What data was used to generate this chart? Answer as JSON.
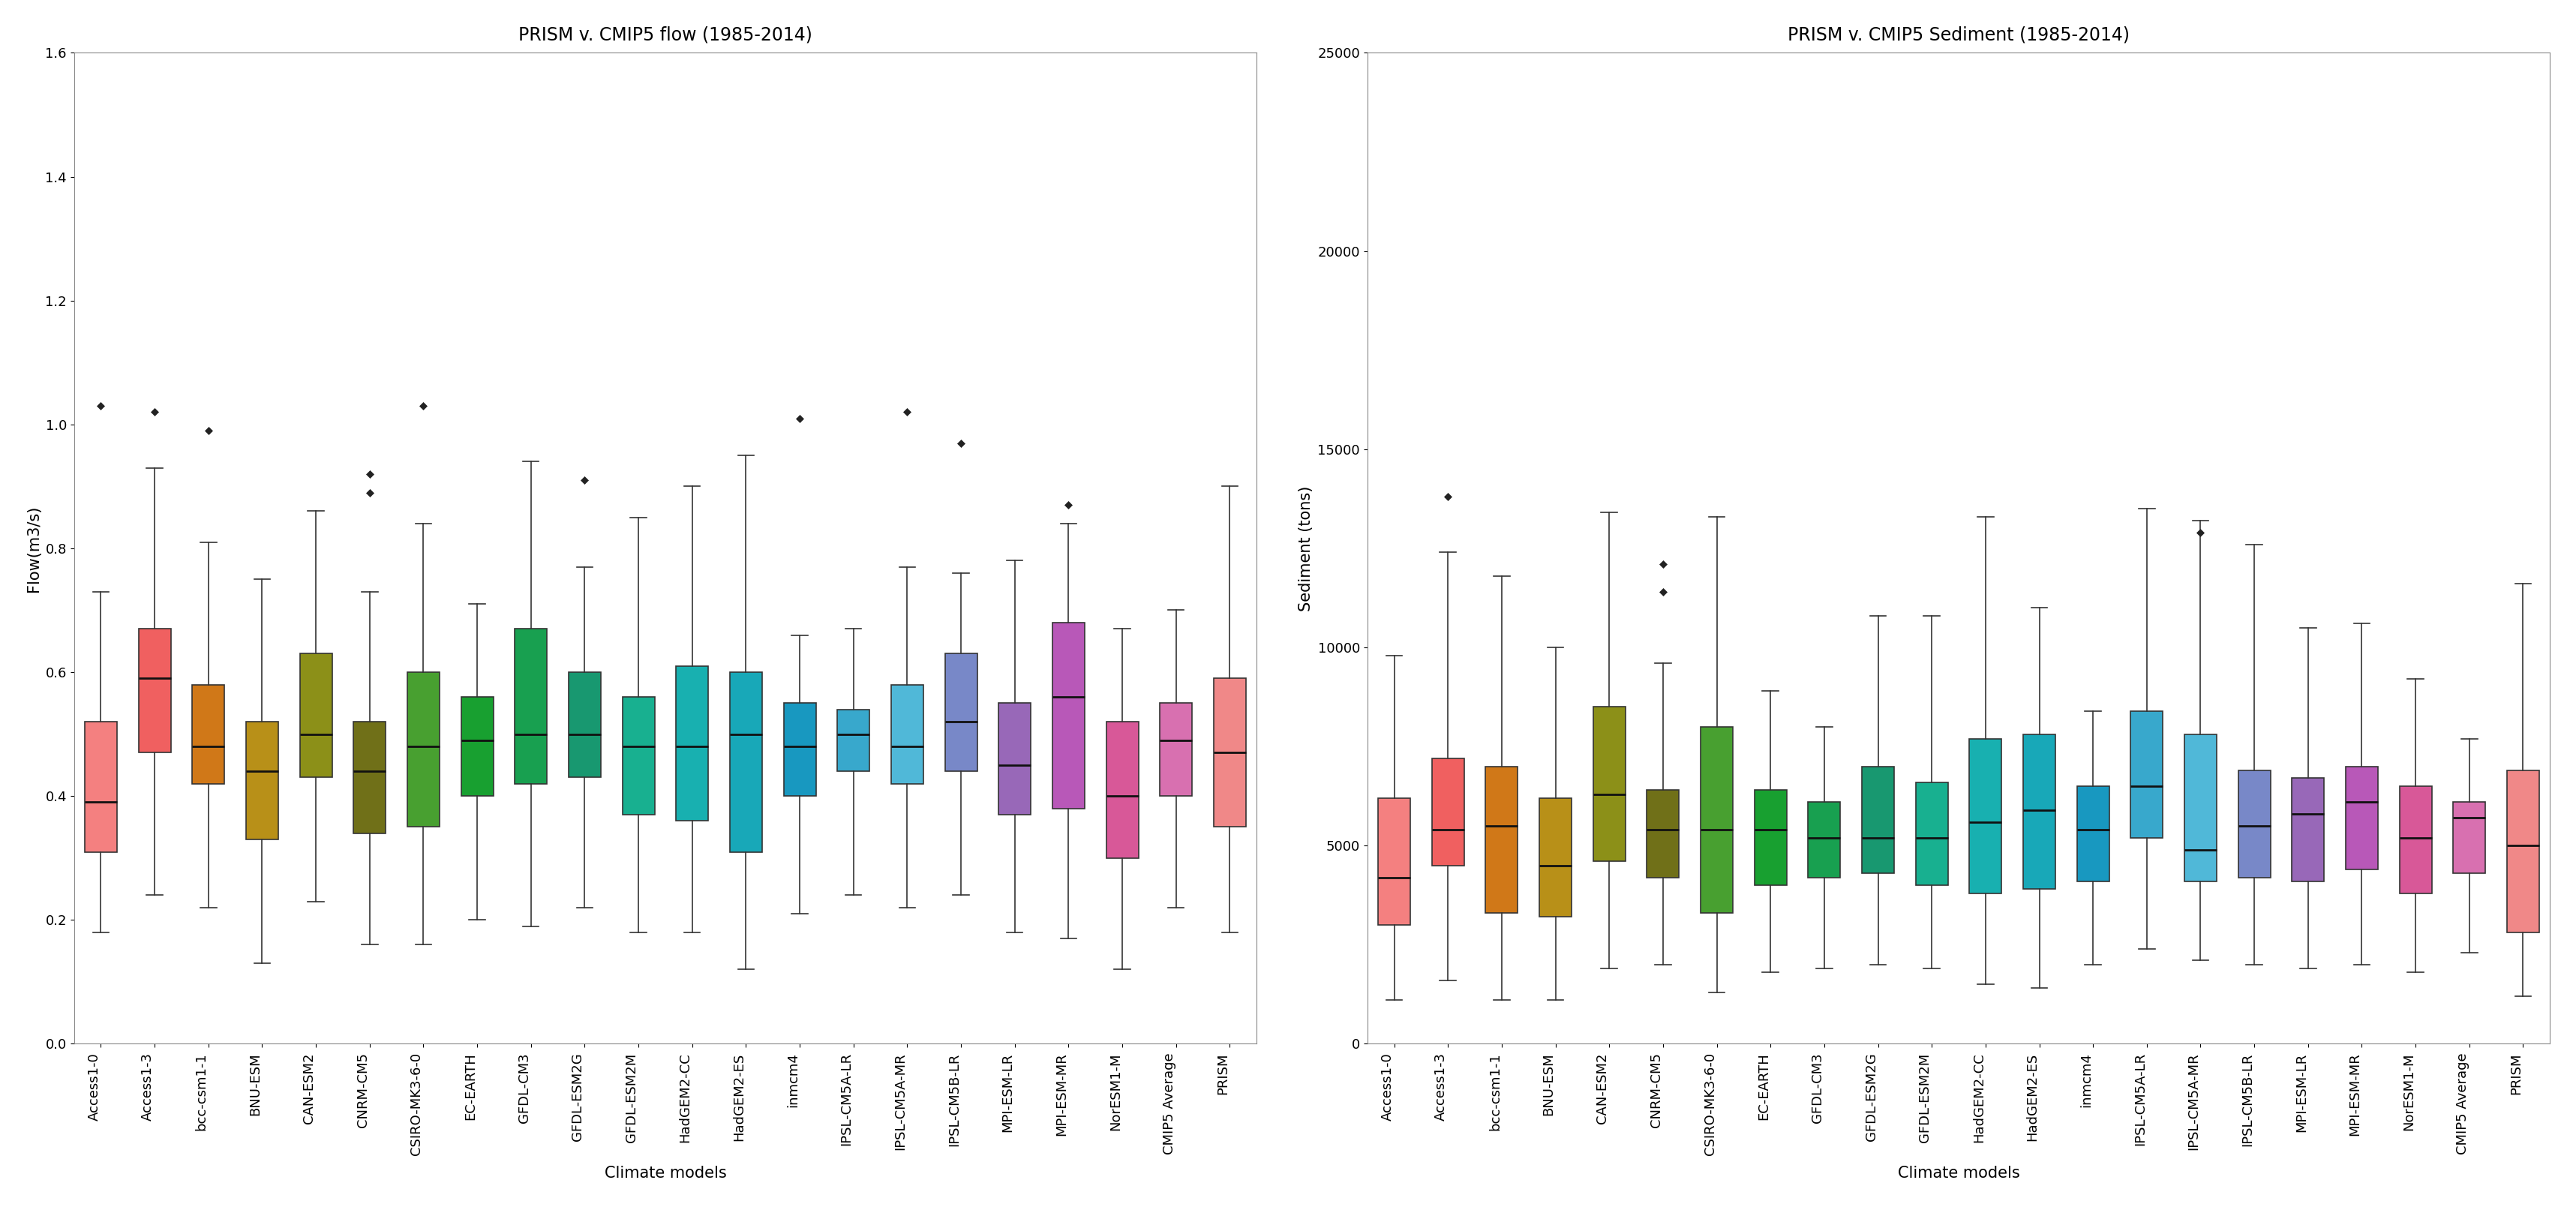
{
  "flow_title": "PRISM v. CMIP5 flow (1985-2014)",
  "sed_title": "PRISM v. CMIP5 Sediment (1985-2014)",
  "flow_ylabel": "Flow(m3/s)",
  "sed_ylabel": "Sediment (tons)",
  "xlabel": "Climate models",
  "flow_ylim": [
    0.0,
    1.6
  ],
  "sed_ylim": [
    0,
    25000
  ],
  "flow_yticks": [
    0.0,
    0.2,
    0.4,
    0.6,
    0.8,
    1.0,
    1.2,
    1.4,
    1.6
  ],
  "sed_yticks": [
    0,
    5000,
    10000,
    15000,
    20000,
    25000
  ],
  "labels": [
    "Access1-0",
    "Access1-3",
    "bcc-csm1-1",
    "BNU-ESM",
    "CAN-ESM2",
    "CNRM-CM5",
    "CSIRO-MK3-6-0",
    "EC-EARTH",
    "GFDL-CM3",
    "GFDL-ESM2G",
    "GFDL-ESM2M",
    "HadGEM2-CC",
    "HadGEM2-ES",
    "inmcm4",
    "IPSL-CM5A-LR",
    "IPSL-CM5A-MR",
    "IPSL-CM5B-LR",
    "MPI-ESM-LR",
    "MPI-ESM-MR",
    "NorESM1-M",
    "CMIP5 Average",
    "PRISM"
  ],
  "colors": [
    "#F48080",
    "#F06060",
    "#D07818",
    "#B89018",
    "#8C9018",
    "#707018",
    "#48A030",
    "#18A030",
    "#18A050",
    "#189870",
    "#18B090",
    "#18B0B0",
    "#18A8B8",
    "#1898C0",
    "#38A8CC",
    "#50B8D8",
    "#7888C8",
    "#9868B8",
    "#B858B8",
    "#D85898",
    "#D870B0",
    "#F08888"
  ],
  "flow_boxes": [
    {
      "med": 0.39,
      "q1": 0.31,
      "q3": 0.52,
      "whislo": 0.18,
      "whishi": 0.73,
      "fliers": [
        1.03
      ]
    },
    {
      "med": 0.59,
      "q1": 0.47,
      "q3": 0.67,
      "whislo": 0.24,
      "whishi": 0.93,
      "fliers": [
        1.02
      ]
    },
    {
      "med": 0.48,
      "q1": 0.42,
      "q3": 0.58,
      "whislo": 0.22,
      "whishi": 0.81,
      "fliers": [
        0.99
      ]
    },
    {
      "med": 0.44,
      "q1": 0.33,
      "q3": 0.52,
      "whislo": 0.13,
      "whishi": 0.75,
      "fliers": []
    },
    {
      "med": 0.5,
      "q1": 0.43,
      "q3": 0.63,
      "whislo": 0.23,
      "whishi": 0.86,
      "fliers": []
    },
    {
      "med": 0.44,
      "q1": 0.34,
      "q3": 0.52,
      "whislo": 0.16,
      "whishi": 0.73,
      "fliers": [
        0.89,
        0.92
      ]
    },
    {
      "med": 0.48,
      "q1": 0.35,
      "q3": 0.6,
      "whislo": 0.16,
      "whishi": 0.84,
      "fliers": [
        1.03
      ]
    },
    {
      "med": 0.49,
      "q1": 0.4,
      "q3": 0.56,
      "whislo": 0.2,
      "whishi": 0.71,
      "fliers": []
    },
    {
      "med": 0.5,
      "q1": 0.42,
      "q3": 0.67,
      "whislo": 0.19,
      "whishi": 0.94,
      "fliers": []
    },
    {
      "med": 0.5,
      "q1": 0.43,
      "q3": 0.6,
      "whislo": 0.22,
      "whishi": 0.77,
      "fliers": [
        0.91
      ]
    },
    {
      "med": 0.48,
      "q1": 0.37,
      "q3": 0.56,
      "whislo": 0.18,
      "whishi": 0.85,
      "fliers": []
    },
    {
      "med": 0.48,
      "q1": 0.36,
      "q3": 0.61,
      "whislo": 0.18,
      "whishi": 0.9,
      "fliers": []
    },
    {
      "med": 0.5,
      "q1": 0.31,
      "q3": 0.6,
      "whislo": 0.12,
      "whishi": 0.95,
      "fliers": []
    },
    {
      "med": 0.48,
      "q1": 0.4,
      "q3": 0.55,
      "whislo": 0.21,
      "whishi": 0.66,
      "fliers": [
        1.01
      ]
    },
    {
      "med": 0.5,
      "q1": 0.44,
      "q3": 0.54,
      "whislo": 0.24,
      "whishi": 0.67,
      "fliers": []
    },
    {
      "med": 0.48,
      "q1": 0.42,
      "q3": 0.58,
      "whislo": 0.22,
      "whishi": 0.77,
      "fliers": [
        1.02
      ]
    },
    {
      "med": 0.52,
      "q1": 0.44,
      "q3": 0.63,
      "whislo": 0.24,
      "whishi": 0.76,
      "fliers": [
        0.97
      ]
    },
    {
      "med": 0.45,
      "q1": 0.37,
      "q3": 0.55,
      "whislo": 0.18,
      "whishi": 0.78,
      "fliers": []
    },
    {
      "med": 0.56,
      "q1": 0.38,
      "q3": 0.68,
      "whislo": 0.17,
      "whishi": 0.84,
      "fliers": [
        0.87
      ]
    },
    {
      "med": 0.4,
      "q1": 0.3,
      "q3": 0.52,
      "whislo": 0.12,
      "whishi": 0.67,
      "fliers": []
    },
    {
      "med": 0.49,
      "q1": 0.4,
      "q3": 0.55,
      "whislo": 0.22,
      "whishi": 0.7,
      "fliers": []
    },
    {
      "med": 0.47,
      "q1": 0.35,
      "q3": 0.59,
      "whislo": 0.18,
      "whishi": 0.9,
      "fliers": []
    }
  ],
  "sed_boxes": [
    {
      "med": 4200,
      "q1": 3000,
      "q3": 6200,
      "whislo": 1100,
      "whishi": 9800,
      "fliers": []
    },
    {
      "med": 5400,
      "q1": 4500,
      "q3": 7200,
      "whislo": 1600,
      "whishi": 12400,
      "fliers": [
        13800
      ]
    },
    {
      "med": 5500,
      "q1": 3300,
      "q3": 7000,
      "whislo": 1100,
      "whishi": 11800,
      "fliers": []
    },
    {
      "med": 4500,
      "q1": 3200,
      "q3": 6200,
      "whislo": 1100,
      "whishi": 10000,
      "fliers": []
    },
    {
      "med": 6300,
      "q1": 4600,
      "q3": 8500,
      "whislo": 1900,
      "whishi": 13400,
      "fliers": []
    },
    {
      "med": 5400,
      "q1": 4200,
      "q3": 6400,
      "whislo": 2000,
      "whishi": 9600,
      "fliers": [
        11400,
        12100
      ]
    },
    {
      "med": 5400,
      "q1": 3300,
      "q3": 8000,
      "whislo": 1300,
      "whishi": 13300,
      "fliers": []
    },
    {
      "med": 5400,
      "q1": 4000,
      "q3": 6400,
      "whislo": 1800,
      "whishi": 8900,
      "fliers": []
    },
    {
      "med": 5200,
      "q1": 4200,
      "q3": 6100,
      "whislo": 1900,
      "whishi": 8000,
      "fliers": []
    },
    {
      "med": 5200,
      "q1": 4300,
      "q3": 7000,
      "whislo": 2000,
      "whishi": 10800,
      "fliers": []
    },
    {
      "med": 5200,
      "q1": 4000,
      "q3": 6600,
      "whislo": 1900,
      "whishi": 10800,
      "fliers": []
    },
    {
      "med": 5600,
      "q1": 3800,
      "q3": 7700,
      "whislo": 1500,
      "whishi": 13300,
      "fliers": []
    },
    {
      "med": 5900,
      "q1": 3900,
      "q3": 7800,
      "whislo": 1400,
      "whishi": 11000,
      "fliers": []
    },
    {
      "med": 5400,
      "q1": 4100,
      "q3": 6500,
      "whislo": 2000,
      "whishi": 8400,
      "fliers": []
    },
    {
      "med": 6500,
      "q1": 5200,
      "q3": 8400,
      "whislo": 2400,
      "whishi": 13500,
      "fliers": []
    },
    {
      "med": 4900,
      "q1": 4100,
      "q3": 7800,
      "whislo": 2100,
      "whishi": 13200,
      "fliers": [
        12900
      ]
    },
    {
      "med": 5500,
      "q1": 4200,
      "q3": 6900,
      "whislo": 2000,
      "whishi": 12600,
      "fliers": []
    },
    {
      "med": 5800,
      "q1": 4100,
      "q3": 6700,
      "whislo": 1900,
      "whishi": 10500,
      "fliers": []
    },
    {
      "med": 6100,
      "q1": 4400,
      "q3": 7000,
      "whislo": 2000,
      "whishi": 10600,
      "fliers": []
    },
    {
      "med": 5200,
      "q1": 3800,
      "q3": 6500,
      "whislo": 1800,
      "whishi": 9200,
      "fliers": []
    },
    {
      "med": 5700,
      "q1": 4300,
      "q3": 6100,
      "whislo": 2300,
      "whishi": 7700,
      "fliers": []
    },
    {
      "med": 5000,
      "q1": 2800,
      "q3": 6900,
      "whislo": 1200,
      "whishi": 11600,
      "fliers": []
    }
  ]
}
